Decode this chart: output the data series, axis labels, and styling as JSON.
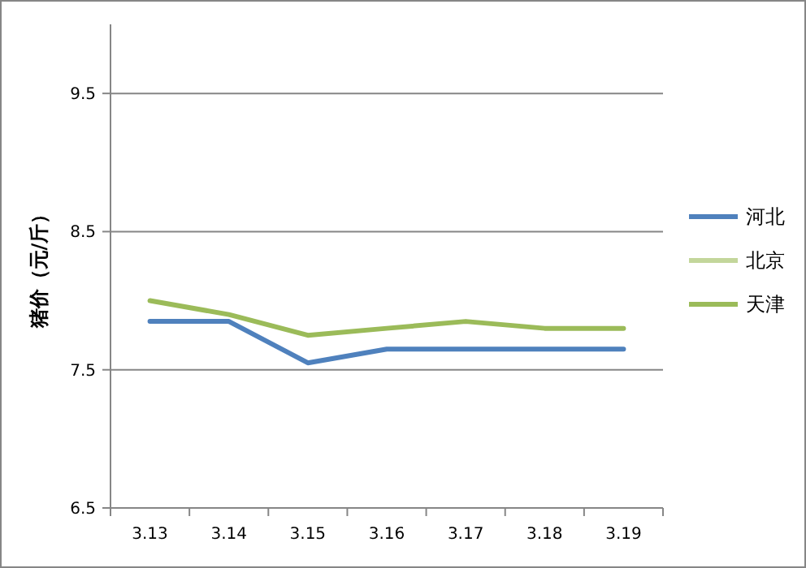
{
  "chart_data": {
    "type": "line",
    "ylabel": "猪价（元/斤）",
    "categories": [
      "3.13",
      "3.14",
      "3.15",
      "3.16",
      "3.17",
      "3.18",
      "3.19"
    ],
    "series": [
      {
        "name": "河北",
        "color": "#4f81bd",
        "values": [
          7.85,
          7.85,
          7.55,
          7.65,
          7.65,
          7.65,
          7.65
        ]
      },
      {
        "name": "北京",
        "color": "#c3d69b",
        "values": [
          null,
          null,
          null,
          null,
          null,
          null,
          null
        ]
      },
      {
        "name": "天津",
        "color": "#9bbb59",
        "values": [
          8.0,
          7.9,
          7.75,
          7.8,
          7.85,
          7.8,
          7.8
        ]
      }
    ],
    "ylim": [
      6.5,
      10
    ],
    "yticks": [
      6.5,
      7.5,
      8.5,
      9.5
    ],
    "grid": "y",
    "legend": "right",
    "marker": "none",
    "line_style": "solid"
  }
}
